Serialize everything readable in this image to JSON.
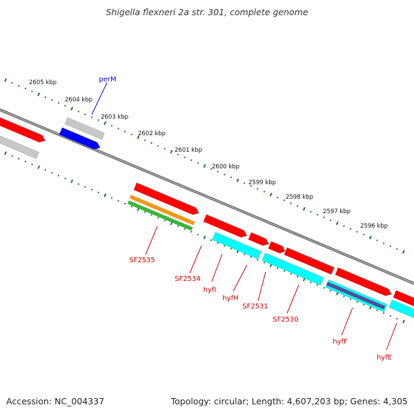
{
  "title": "Shigella flexneri 2a str. 301, complete genome",
  "footer": {
    "accession": "Accession: NC_004337",
    "summary": "Topology: circular; Length: 4,607,203 bp; Genes: 4,305"
  },
  "colors": {
    "backbone": "#808080",
    "tick": "#1f7a1f",
    "cds_forward": "#ff0000",
    "cds_reverse": "#00ffff",
    "pseudo_gene": "#c8c8c8",
    "blue_gene": "#0000ff",
    "orange_gene": "#ff9900",
    "green_gene": "#33bb33",
    "purple_gene": "#5a4a9a",
    "label_red": "#cc0000",
    "label_blue": "#0000cc"
  },
  "ruler": {
    "unit": "kbp",
    "ticks": [
      "2605 kbp",
      "2604 kbp",
      "2603 kbp",
      "2602 kbp",
      "2601 kbp",
      "2600 kbp",
      "2599 kbp",
      "2598 kbp",
      "2597 kbp",
      "2596 kbp"
    ]
  },
  "gene_labels": [
    {
      "name": "perM",
      "color": "blue"
    },
    {
      "name": "SF2535",
      "color": "red"
    },
    {
      "name": "SF2534",
      "color": "red"
    },
    {
      "name": "hyfI",
      "color": "red"
    },
    {
      "name": "hyfH",
      "color": "red"
    },
    {
      "name": "SF2531",
      "color": "red"
    },
    {
      "name": "SF2530",
      "color": "red"
    },
    {
      "name": "hyfF",
      "color": "red"
    },
    {
      "name": "hyfE",
      "color": "red"
    }
  ]
}
